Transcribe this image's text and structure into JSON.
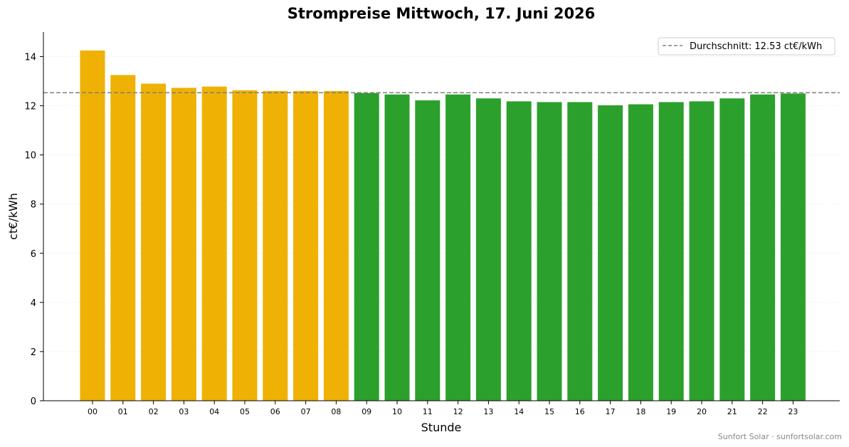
{
  "chart_data": {
    "type": "bar",
    "title": "Strompreise Mittwoch, 17. Juni 2026",
    "xlabel": "Stunde",
    "ylabel": "ct€/kWh",
    "categories": [
      "00",
      "01",
      "02",
      "03",
      "04",
      "05",
      "06",
      "07",
      "08",
      "09",
      "10",
      "11",
      "12",
      "13",
      "14",
      "15",
      "16",
      "17",
      "18",
      "19",
      "20",
      "21",
      "22",
      "23"
    ],
    "values": [
      14.25,
      13.25,
      12.9,
      12.73,
      12.78,
      12.63,
      12.6,
      12.6,
      12.6,
      12.52,
      12.46,
      12.22,
      12.46,
      12.3,
      12.18,
      12.15,
      12.15,
      12.02,
      12.06,
      12.15,
      12.18,
      12.3,
      12.46,
      12.5
    ],
    "bar_colors": [
      "#efb103",
      "#efb103",
      "#efb103",
      "#efb103",
      "#efb103",
      "#efb103",
      "#efb103",
      "#efb103",
      "#efb103",
      "#2ca02c",
      "#2ca02c",
      "#2ca02c",
      "#2ca02c",
      "#2ca02c",
      "#2ca02c",
      "#2ca02c",
      "#2ca02c",
      "#2ca02c",
      "#2ca02c",
      "#2ca02c",
      "#2ca02c",
      "#2ca02c",
      "#2ca02c",
      "#2ca02c"
    ],
    "ylim": [
      0,
      15
    ],
    "yticks": [
      0,
      2,
      4,
      6,
      8,
      10,
      12,
      14
    ],
    "grid": "y-dotted",
    "average": {
      "value": 12.53,
      "label": "Durchschnitt: 12.53 ct€/kWh",
      "color": "#808080",
      "style": "dashed"
    },
    "legend_position": "top-right"
  },
  "footer": "Sunfort Solar · sunfortsolar.com"
}
